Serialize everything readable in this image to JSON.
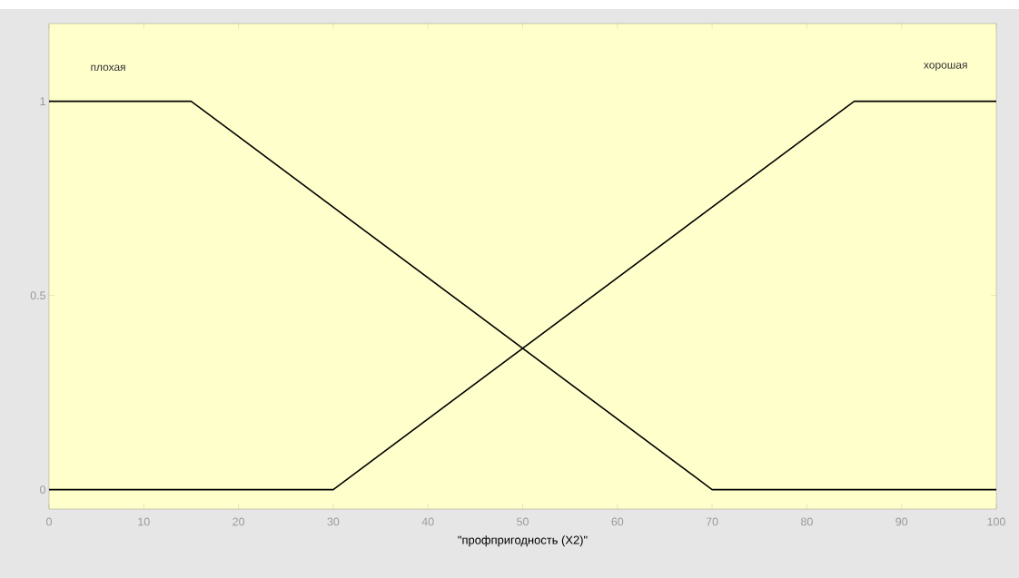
{
  "chart_data": {
    "type": "line",
    "xlabel": "\"профпригодность (X2)\"",
    "series": [
      {
        "name": "плохая",
        "color": "#000000",
        "x": [
          0,
          15,
          70,
          100
        ],
        "values": [
          1,
          1,
          0,
          0
        ]
      },
      {
        "name": "хорошая",
        "color": "#000000",
        "x": [
          0,
          30,
          85,
          100
        ],
        "values": [
          0,
          0,
          1,
          1
        ]
      }
    ],
    "xlim": [
      0,
      100
    ],
    "ylim": [
      -0.05,
      1.2
    ],
    "xticks": [
      0,
      10,
      20,
      30,
      40,
      50,
      60,
      70,
      80,
      90,
      100
    ],
    "yticks": [
      0,
      0.5,
      1
    ],
    "grid": false,
    "legend": false,
    "marker": "none",
    "line_style": "solid"
  }
}
